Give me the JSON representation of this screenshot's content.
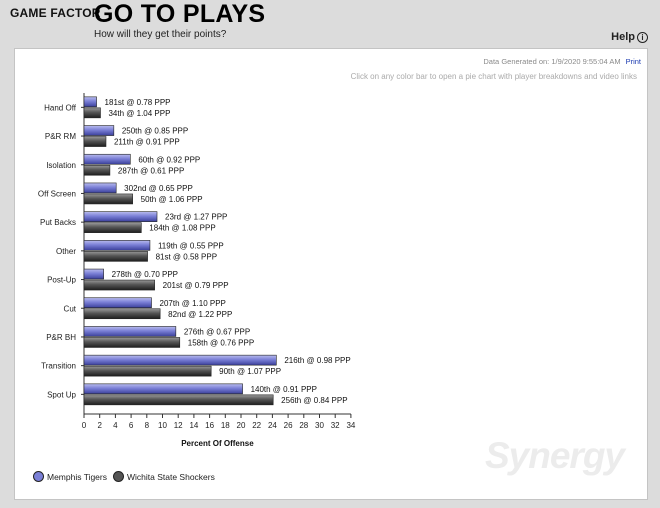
{
  "header": {
    "brand": "GAME FACTOR",
    "title": "GO TO PLAYS",
    "subtitle": "How will they get their points?",
    "help_label": "Help",
    "help_icon": "info-icon"
  },
  "panel": {
    "meta": "Data Generated on: 1/9/2020 9:55:04 AM",
    "print_label": "Print",
    "hint": "Click on any color bar to open a pie chart with player breakdowns and video links",
    "watermark": "Synergy"
  },
  "colors": {
    "series_a": "#7a7fd6",
    "series_b": "#555555"
  },
  "chart_data": {
    "type": "bar",
    "orientation": "horizontal",
    "xlabel": "Percent Of Offense",
    "xlim": [
      0,
      34
    ],
    "xticks": [
      0,
      2,
      4,
      6,
      8,
      10,
      12,
      14,
      16,
      18,
      20,
      22,
      24,
      26,
      28,
      30,
      32,
      34
    ],
    "grid": false,
    "legend_position": "bottom-left",
    "categories": [
      "Hand Off",
      "P&R RM",
      "Isolation",
      "Off Screen",
      "Put Backs",
      "Other",
      "Post-Up",
      "Cut",
      "P&R BH",
      "Transition",
      "Spot Up"
    ],
    "series": [
      {
        "name": "Memphis Tigers",
        "values": [
          1.6,
          3.8,
          5.9,
          4.1,
          9.3,
          8.4,
          2.5,
          8.6,
          11.7,
          24.5,
          20.2
        ],
        "labels": [
          "181st @ 0.78 PPP",
          "250th @ 0.85 PPP",
          "60th @ 0.92 PPP",
          "302nd @ 0.65 PPP",
          "23rd @ 1.27 PPP",
          "119th @ 0.55 PPP",
          "278th @ 0.70 PPP",
          "207th @ 1.10 PPP",
          "276th @ 0.67 PPP",
          "216th @ 0.98 PPP",
          "140th @ 0.91 PPP"
        ]
      },
      {
        "name": "Wichita State Shockers",
        "values": [
          2.1,
          2.8,
          3.3,
          6.2,
          7.3,
          8.1,
          9.0,
          9.7,
          12.2,
          16.2,
          24.1
        ],
        "labels": [
          "34th @ 1.04 PPP",
          "211th @ 0.91 PPP",
          "287th @ 0.61 PPP",
          "50th @ 1.06 PPP",
          "184th @ 1.08 PPP",
          "81st @ 0.58 PPP",
          "201st @ 0.79 PPP",
          "82nd @ 1.22 PPP",
          "158th @ 0.76 PPP",
          "90th @ 1.07 PPP",
          "256th @ 0.84 PPP"
        ]
      }
    ]
  }
}
